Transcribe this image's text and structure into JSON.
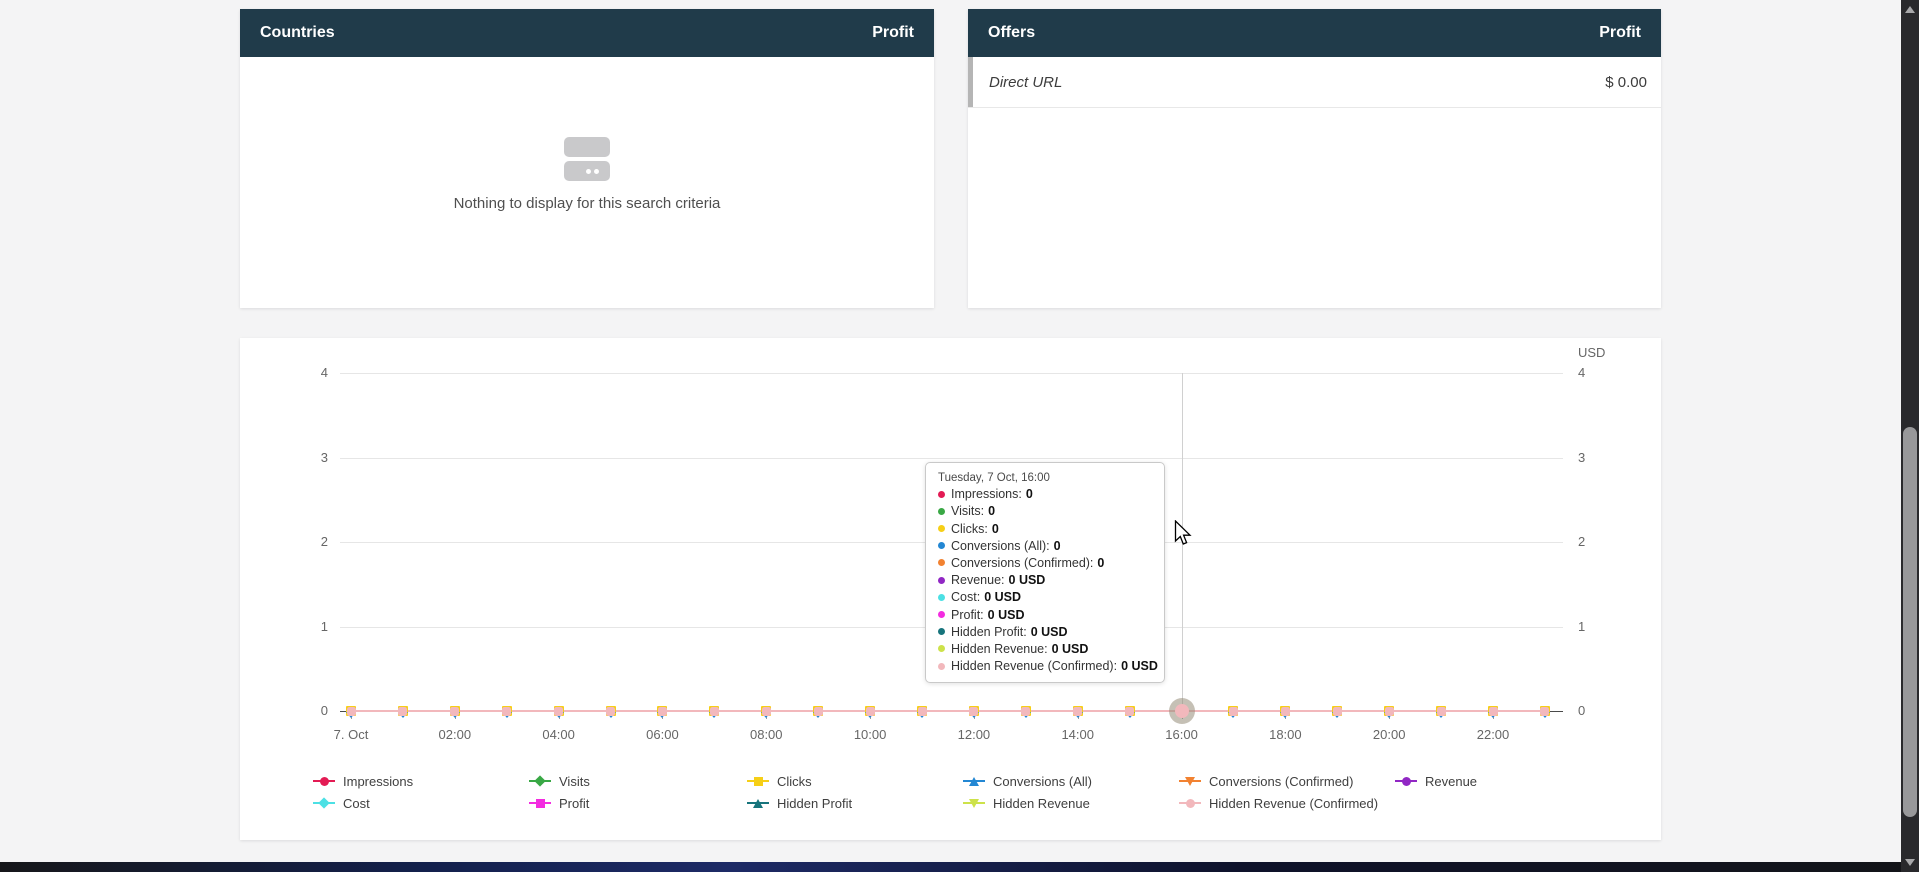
{
  "colors": {
    "page_bg": "#f4f4f5",
    "panel_header_bg": "#203b4a",
    "grid_line": "#e6e6e6",
    "axis_line": "#4a4a4a",
    "crosshair": "#d0d0d0",
    "axis_label": "#666666",
    "offer_accent_bar": "#b5b5b5"
  },
  "panels": {
    "countries": {
      "title": "Countries",
      "metric_header": "Profit",
      "empty_message": "Nothing to display for this search criteria"
    },
    "offers": {
      "title": "Offers",
      "metric_header": "Profit",
      "rows": [
        {
          "name": "Direct URL",
          "value": "$ 0.00"
        }
      ]
    }
  },
  "chart_data": {
    "type": "line",
    "title": "",
    "unit_label": "USD",
    "ylim": [
      0,
      4
    ],
    "y_ticks": [
      0,
      1,
      2,
      3,
      4
    ],
    "grid": true,
    "legend_position": "bottom",
    "x_axis": {
      "date": "7. Oct",
      "points_per_series": 24,
      "point_interval": "1 hour",
      "tick_hours": [
        0,
        2,
        4,
        6,
        8,
        10,
        12,
        14,
        16,
        18,
        20,
        22
      ],
      "tick_labels": [
        "7. Oct",
        "02:00",
        "04:00",
        "06:00",
        "08:00",
        "10:00",
        "12:00",
        "14:00",
        "16:00",
        "18:00",
        "20:00",
        "22:00"
      ]
    },
    "series": [
      {
        "name": "Impressions",
        "color": "#e31b54",
        "marker": "circle",
        "values": [
          0,
          0,
          0,
          0,
          0,
          0,
          0,
          0,
          0,
          0,
          0,
          0,
          0,
          0,
          0,
          0,
          0,
          0,
          0,
          0,
          0,
          0,
          0,
          0
        ]
      },
      {
        "name": "Visits",
        "color": "#39a845",
        "marker": "diamond",
        "values": [
          0,
          0,
          0,
          0,
          0,
          0,
          0,
          0,
          0,
          0,
          0,
          0,
          0,
          0,
          0,
          0,
          0,
          0,
          0,
          0,
          0,
          0,
          0,
          0
        ]
      },
      {
        "name": "Clicks",
        "color": "#f6cf17",
        "marker": "square",
        "values": [
          0,
          0,
          0,
          0,
          0,
          0,
          0,
          0,
          0,
          0,
          0,
          0,
          0,
          0,
          0,
          0,
          0,
          0,
          0,
          0,
          0,
          0,
          0,
          0
        ]
      },
      {
        "name": "Conversions (All)",
        "color": "#2387d3",
        "marker": "triangle",
        "values": [
          0,
          0,
          0,
          0,
          0,
          0,
          0,
          0,
          0,
          0,
          0,
          0,
          0,
          0,
          0,
          0,
          0,
          0,
          0,
          0,
          0,
          0,
          0,
          0
        ]
      },
      {
        "name": "Conversions (Confirmed)",
        "color": "#f28231",
        "marker": "triangle-down",
        "values": [
          0,
          0,
          0,
          0,
          0,
          0,
          0,
          0,
          0,
          0,
          0,
          0,
          0,
          0,
          0,
          0,
          0,
          0,
          0,
          0,
          0,
          0,
          0,
          0
        ]
      },
      {
        "name": "Revenue",
        "color": "#9127c4",
        "marker": "circle",
        "values": [
          0,
          0,
          0,
          0,
          0,
          0,
          0,
          0,
          0,
          0,
          0,
          0,
          0,
          0,
          0,
          0,
          0,
          0,
          0,
          0,
          0,
          0,
          0,
          0
        ]
      },
      {
        "name": "Cost",
        "color": "#4ce0e4",
        "marker": "diamond",
        "values": [
          0,
          0,
          0,
          0,
          0,
          0,
          0,
          0,
          0,
          0,
          0,
          0,
          0,
          0,
          0,
          0,
          0,
          0,
          0,
          0,
          0,
          0,
          0,
          0
        ]
      },
      {
        "name": "Profit",
        "color": "#f32ce0",
        "marker": "square",
        "values": [
          0,
          0,
          0,
          0,
          0,
          0,
          0,
          0,
          0,
          0,
          0,
          0,
          0,
          0,
          0,
          0,
          0,
          0,
          0,
          0,
          0,
          0,
          0,
          0
        ]
      },
      {
        "name": "Hidden Profit",
        "color": "#17747c",
        "marker": "triangle",
        "values": [
          0,
          0,
          0,
          0,
          0,
          0,
          0,
          0,
          0,
          0,
          0,
          0,
          0,
          0,
          0,
          0,
          0,
          0,
          0,
          0,
          0,
          0,
          0,
          0
        ]
      },
      {
        "name": "Hidden Revenue",
        "color": "#cde24a",
        "marker": "triangle-down",
        "values": [
          0,
          0,
          0,
          0,
          0,
          0,
          0,
          0,
          0,
          0,
          0,
          0,
          0,
          0,
          0,
          0,
          0,
          0,
          0,
          0,
          0,
          0,
          0,
          0
        ]
      },
      {
        "name": "Hidden Revenue (Confirmed)",
        "color": "#f2b8bc",
        "marker": "circle",
        "values": [
          0,
          0,
          0,
          0,
          0,
          0,
          0,
          0,
          0,
          0,
          0,
          0,
          0,
          0,
          0,
          0,
          0,
          0,
          0,
          0,
          0,
          0,
          0,
          0
        ]
      }
    ],
    "hover_point": {
      "hour_index": 16,
      "y_value": 0
    }
  },
  "tooltip": {
    "title": "Tuesday, 7 Oct, 16:00",
    "items": [
      {
        "label": "Impressions",
        "value": "0"
      },
      {
        "label": "Visits",
        "value": "0"
      },
      {
        "label": "Clicks",
        "value": "0"
      },
      {
        "label": "Conversions (All)",
        "value": "0"
      },
      {
        "label": "Conversions (Confirmed)",
        "value": "0"
      },
      {
        "label": "Revenue",
        "value": "0 USD"
      },
      {
        "label": "Cost",
        "value": "0 USD"
      },
      {
        "label": "Profit",
        "value": "0 USD"
      },
      {
        "label": "Hidden Profit",
        "value": "0 USD"
      },
      {
        "label": "Hidden Revenue",
        "value": "0 USD"
      },
      {
        "label": "Hidden Revenue (Confirmed)",
        "value": "0 USD"
      }
    ]
  }
}
